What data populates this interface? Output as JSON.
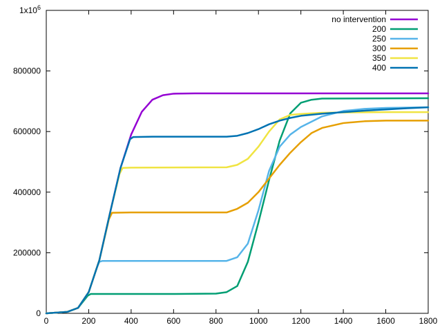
{
  "chart_data": {
    "type": "line",
    "title": "",
    "xlabel": "",
    "ylabel": "",
    "xlim": [
      0,
      1800
    ],
    "ylim": [
      0,
      1000000
    ],
    "x_ticks": [
      0,
      200,
      400,
      600,
      800,
      1000,
      1200,
      1400,
      1600,
      1800
    ],
    "x_tick_labels": [
      "0",
      "200",
      "400",
      "600",
      "800",
      "1000",
      "1200",
      "1400",
      "1600",
      "1800"
    ],
    "y_ticks": [
      0,
      200000,
      400000,
      600000,
      800000,
      1000000
    ],
    "y_tick_labels": [
      "0",
      "200000",
      "400000",
      "600000",
      "800000",
      "1x10"
    ],
    "y_top_exponent": "6",
    "grid": false,
    "legend_position": "top-right",
    "series": [
      {
        "name": "no intervention",
        "color": "#9400d3",
        "points": [
          [
            0,
            0
          ],
          [
            100,
            5000
          ],
          [
            150,
            18000
          ],
          [
            200,
            70000
          ],
          [
            250,
            175000
          ],
          [
            300,
            330000
          ],
          [
            350,
            480000
          ],
          [
            400,
            590000
          ],
          [
            450,
            665000
          ],
          [
            500,
            705000
          ],
          [
            550,
            720000
          ],
          [
            600,
            725000
          ],
          [
            700,
            726000
          ],
          [
            1800,
            726000
          ]
        ]
      },
      {
        "name": "200",
        "color": "#009e73",
        "points": [
          [
            0,
            0
          ],
          [
            100,
            5000
          ],
          [
            150,
            18000
          ],
          [
            195,
            58000
          ],
          [
            210,
            64000
          ],
          [
            300,
            64000
          ],
          [
            600,
            64000
          ],
          [
            800,
            65000
          ],
          [
            850,
            70000
          ],
          [
            900,
            90000
          ],
          [
            950,
            170000
          ],
          [
            1000,
            300000
          ],
          [
            1050,
            440000
          ],
          [
            1100,
            570000
          ],
          [
            1150,
            660000
          ],
          [
            1200,
            695000
          ],
          [
            1250,
            705000
          ],
          [
            1300,
            709000
          ],
          [
            1800,
            710000
          ]
        ]
      },
      {
        "name": "250",
        "color": "#56b4e9",
        "points": [
          [
            0,
            0
          ],
          [
            100,
            5000
          ],
          [
            150,
            18000
          ],
          [
            200,
            70000
          ],
          [
            235,
            145000
          ],
          [
            250,
            170000
          ],
          [
            265,
            173000
          ],
          [
            400,
            173000
          ],
          [
            850,
            173000
          ],
          [
            900,
            185000
          ],
          [
            950,
            230000
          ],
          [
            1000,
            340000
          ],
          [
            1050,
            470000
          ],
          [
            1100,
            550000
          ],
          [
            1150,
            590000
          ],
          [
            1200,
            615000
          ],
          [
            1300,
            650000
          ],
          [
            1400,
            668000
          ],
          [
            1500,
            675000
          ],
          [
            1600,
            678000
          ],
          [
            1800,
            680000
          ]
        ]
      },
      {
        "name": "300",
        "color": "#e69f00",
        "points": [
          [
            0,
            0
          ],
          [
            100,
            5000
          ],
          [
            150,
            18000
          ],
          [
            200,
            70000
          ],
          [
            250,
            175000
          ],
          [
            295,
            310000
          ],
          [
            310,
            332000
          ],
          [
            400,
            333000
          ],
          [
            850,
            333000
          ],
          [
            900,
            345000
          ],
          [
            950,
            365000
          ],
          [
            1000,
            400000
          ],
          [
            1050,
            445000
          ],
          [
            1100,
            490000
          ],
          [
            1150,
            530000
          ],
          [
            1200,
            565000
          ],
          [
            1250,
            595000
          ],
          [
            1300,
            612000
          ],
          [
            1400,
            628000
          ],
          [
            1500,
            634000
          ],
          [
            1600,
            636000
          ],
          [
            1800,
            636000
          ]
        ]
      },
      {
        "name": "350",
        "color": "#f0e442",
        "points": [
          [
            0,
            0
          ],
          [
            100,
            5000
          ],
          [
            150,
            18000
          ],
          [
            200,
            70000
          ],
          [
            250,
            175000
          ],
          [
            300,
            330000
          ],
          [
            345,
            460000
          ],
          [
            360,
            480000
          ],
          [
            400,
            481000
          ],
          [
            850,
            482000
          ],
          [
            900,
            490000
          ],
          [
            950,
            510000
          ],
          [
            1000,
            550000
          ],
          [
            1050,
            600000
          ],
          [
            1100,
            640000
          ],
          [
            1150,
            655000
          ],
          [
            1200,
            658000
          ],
          [
            1300,
            662000
          ],
          [
            1400,
            663000
          ],
          [
            1600,
            664000
          ],
          [
            1800,
            664000
          ]
        ]
      },
      {
        "name": "400",
        "color": "#0072b2",
        "points": [
          [
            0,
            0
          ],
          [
            100,
            5000
          ],
          [
            150,
            18000
          ],
          [
            200,
            70000
          ],
          [
            250,
            175000
          ],
          [
            300,
            330000
          ],
          [
            350,
            480000
          ],
          [
            395,
            575000
          ],
          [
            410,
            582000
          ],
          [
            500,
            583000
          ],
          [
            850,
            583000
          ],
          [
            900,
            586000
          ],
          [
            950,
            595000
          ],
          [
            1000,
            608000
          ],
          [
            1050,
            624000
          ],
          [
            1100,
            636000
          ],
          [
            1150,
            645000
          ],
          [
            1200,
            652000
          ],
          [
            1300,
            659000
          ],
          [
            1400,
            664000
          ],
          [
            1500,
            669000
          ],
          [
            1600,
            673000
          ],
          [
            1700,
            677000
          ],
          [
            1800,
            680000
          ]
        ]
      }
    ]
  }
}
